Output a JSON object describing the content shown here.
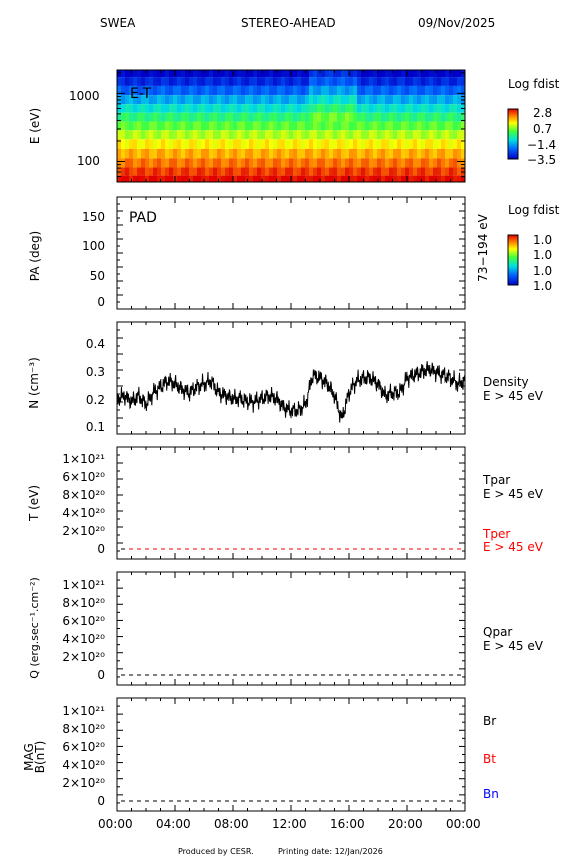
{
  "header": {
    "instrument": "SWEA",
    "spacecraft": "STEREO-AHEAD",
    "date": "09/Nov/2025"
  },
  "footer": {
    "produced_by": "Produced by CESR.",
    "printing_date": "Printing date: 12/Jan/2026"
  },
  "colors": {
    "black": "#000000",
    "red": "#ff0000",
    "blue": "#0000ff"
  },
  "chart_data": [
    {
      "type": "heatmap",
      "panel_label": "E-T",
      "ylabel": "E (eV)",
      "yscale": "log",
      "ylim": [
        50,
        2200
      ],
      "yticks": [
        "1000",
        "100"
      ],
      "energy_bands_ev": [
        2000,
        1500,
        1100,
        800,
        600,
        450,
        330,
        250,
        180,
        130,
        95,
        70,
        55
      ],
      "band_log_fdist": [
        -3.5,
        -3.0,
        -2.3,
        -1.6,
        -1.0,
        -0.4,
        0.1,
        0.6,
        1.1,
        1.6,
        2.0,
        2.4,
        2.8
      ],
      "colorbar": {
        "title": "Log fdist",
        "ticks": [
          "2.8",
          "0.7",
          "−1.4",
          "−3.5"
        ]
      }
    },
    {
      "type": "heatmap",
      "panel_label": "PAD",
      "ylabel": "PA (deg)",
      "ylim": [
        0,
        180
      ],
      "yticks": [
        "150",
        "100",
        "50",
        "0"
      ],
      "right_label": "73−194 eV",
      "colorbar": {
        "title": "Log fdist",
        "ticks": [
          "1.0",
          "1.0",
          "1.0",
          "1.0"
        ]
      }
    },
    {
      "type": "line",
      "ylabel": "N (cm⁻³)",
      "ylim": [
        0.09,
        0.47
      ],
      "yticks": [
        "0.4",
        "0.3",
        "0.2",
        "0.1"
      ],
      "series": [
        {
          "name": "Density",
          "name2": "E > 45 eV",
          "x_hours": [
            0,
            0.5,
            1,
            1.5,
            2,
            2.5,
            3,
            3.5,
            4,
            4.5,
            5,
            5.5,
            6,
            6.5,
            7,
            7.5,
            8,
            8.5,
            9,
            9.5,
            10,
            10.5,
            11,
            11.5,
            12,
            12.5,
            13,
            13.5,
            14,
            14.5,
            15,
            15.5,
            16,
            16.5,
            17,
            17.5,
            18,
            18.5,
            19,
            19.5,
            20,
            20.5,
            21,
            21.5,
            22,
            22.5,
            23,
            23.5,
            24
          ],
          "values": [
            0.21,
            0.22,
            0.2,
            0.22,
            0.19,
            0.23,
            0.25,
            0.27,
            0.26,
            0.24,
            0.23,
            0.25,
            0.26,
            0.27,
            0.23,
            0.22,
            0.21,
            0.21,
            0.2,
            0.2,
            0.21,
            0.22,
            0.21,
            0.18,
            0.17,
            0.17,
            0.19,
            0.29,
            0.28,
            0.26,
            0.22,
            0.14,
            0.23,
            0.27,
            0.28,
            0.28,
            0.26,
            0.22,
            0.23,
            0.23,
            0.28,
            0.29,
            0.3,
            0.31,
            0.3,
            0.29,
            0.28,
            0.26,
            0.27
          ]
        }
      ]
    },
    {
      "type": "line",
      "ylabel": "T (eV)",
      "ylim": [
        -1e+20,
        1.1e+21
      ],
      "yticks": [
        "1×10²¹",
        "8×10²⁰",
        "6×10²⁰",
        "4×10²⁰",
        "2×10²⁰",
        "0"
      ],
      "series": [
        {
          "name": "Tpar",
          "name2": "E > 45 eV",
          "color": "#000000",
          "values": [
            0,
            0
          ]
        },
        {
          "name": "Tper",
          "name2": "E > 45 eV",
          "color": "#ff0000",
          "values": [
            0,
            0
          ]
        }
      ]
    },
    {
      "type": "line",
      "ylabel": "Q (erg.sec⁻¹.cm⁻²)",
      "ylim": [
        -1e+20,
        1.1e+21
      ],
      "yticks": [
        "1×10²¹",
        "8×10²⁰",
        "6×10²⁰",
        "4×10²⁰",
        "2×10²⁰",
        "0"
      ],
      "series": [
        {
          "name": "Qpar",
          "name2": "E > 45 eV",
          "color": "#000000",
          "values": [
            0,
            0
          ]
        }
      ]
    },
    {
      "type": "line",
      "ylabel": "MAG",
      "ylabel2": "B(nT)",
      "ylim": [
        -1e+20,
        1.1e+21
      ],
      "yticks": [
        "1×10²¹",
        "8×10²⁰",
        "6×10²⁰",
        "4×10²⁰",
        "2×10²⁰",
        "0"
      ],
      "series": [
        {
          "name": "Br",
          "color": "#000000",
          "values": [
            0,
            0
          ]
        },
        {
          "name": "Bt",
          "color": "#ff0000",
          "values": [
            0,
            0
          ]
        },
        {
          "name": "Bn",
          "color": "#0000ff",
          "values": [
            0,
            0
          ]
        }
      ]
    }
  ],
  "x_axis": {
    "xlim_hours": [
      0,
      24
    ],
    "tick_labels": [
      "00:00",
      "04:00",
      "08:00",
      "12:00",
      "16:00",
      "20:00",
      "00:00"
    ]
  }
}
